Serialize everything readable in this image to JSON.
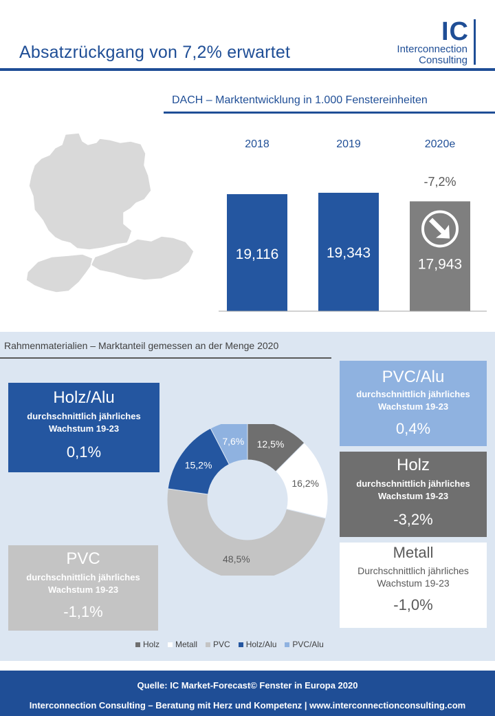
{
  "header": {
    "title": "Absatzrückgang von 7,2% erwartet",
    "logo": {
      "letters": "IC",
      "line1": "Interconnection",
      "line2": "Consulting"
    }
  },
  "market_chart": {
    "subtitle": "DACH – Marktentwicklung in 1.000 Fenstereinheiten"
  },
  "share_section": {
    "subtitle": "Rahmenmaterialien – Marktanteil gemessen an der Menge 2020"
  },
  "materials": {
    "holz_alu": {
      "name": "Holz/Alu",
      "desc1": "durchschnittlich jährliches",
      "desc2": "Wachstum 19-23",
      "value": "0,1%"
    },
    "pvc_alu": {
      "name": "PVC/Alu",
      "desc1": "durchschnittlich jährliches",
      "desc2": "Wachstum 19-23",
      "value": "0,4%"
    },
    "holz": {
      "name": "Holz",
      "desc1": "durchschnittlich jährliches",
      "desc2": "Wachstum 19-23",
      "value": "-3,2%"
    },
    "pvc": {
      "name": "PVC",
      "desc1": "durchschnittlich jährliches",
      "desc2": "Wachstum 19-23",
      "value": "-1,1%"
    },
    "metall": {
      "name": "Metall",
      "desc1": "Durchschnittlich jährliches",
      "desc2": "Wachstum 19-23",
      "value": "-1,0%"
    }
  },
  "footer": {
    "source": "Quelle: IC Market-Forecast© Fenster in Europa 2020",
    "tagline": "Interconnection Consulting – Beratung mit Herz und Kompetenz  |  www.interconnectionconsulting.com"
  },
  "colors": {
    "brand_blue": "#1f4e96",
    "bar_blue": "#2456a0",
    "forecast_grey": "#7f7f7f",
    "holz": "#6f6f6f",
    "metall": "#ffffff",
    "pvc": "#c4c4c4",
    "holz_alu": "#2456a0",
    "pvc_alu": "#8fb2e0",
    "map_grey": "#d9d9d9"
  },
  "icons": {
    "forecast_marker": "arrow-down-right-icon"
  },
  "chart_data": [
    {
      "type": "bar",
      "title": "DACH – Marktentwicklung in 1.000 Fenstereinheiten",
      "categories": [
        "2018",
        "2019",
        "2020e"
      ],
      "values": [
        19116,
        19343,
        17943
      ],
      "value_labels": [
        "19,116",
        "19,343",
        "17,943"
      ],
      "annotations": [
        {
          "category": "2020e",
          "text": "-7,2%"
        }
      ],
      "ylim": [
        0,
        19343
      ],
      "grid": false
    },
    {
      "type": "pie",
      "variant": "donut",
      "title": "Rahmenmaterialien – Marktanteil gemessen an der Menge 2020",
      "categories": [
        "Holz",
        "Metall",
        "PVC",
        "Holz/Alu",
        "PVC/Alu"
      ],
      "values": [
        12.5,
        16.2,
        48.5,
        15.2,
        7.6
      ],
      "value_labels": [
        "12,5%",
        "16,2%",
        "48,5%",
        "15,2%",
        "7,6%"
      ],
      "legend": "bottom"
    }
  ]
}
